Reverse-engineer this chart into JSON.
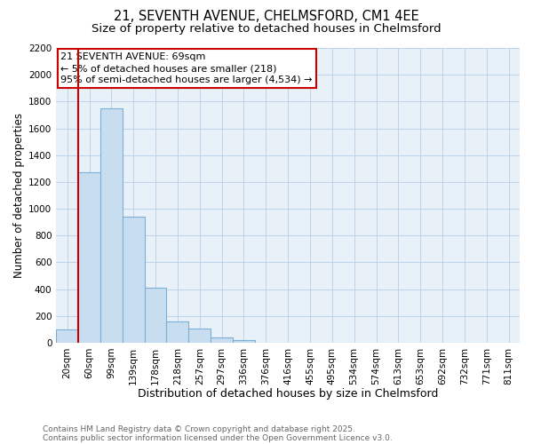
{
  "title1": "21, SEVENTH AVENUE, CHELMSFORD, CM1 4EE",
  "title2": "Size of property relative to detached houses in Chelmsford",
  "xlabel": "Distribution of detached houses by size in Chelmsford",
  "ylabel": "Number of detached properties",
  "bins": [
    "20sqm",
    "60sqm",
    "99sqm",
    "139sqm",
    "178sqm",
    "218sqm",
    "257sqm",
    "297sqm",
    "336sqm",
    "376sqm",
    "416sqm",
    "455sqm",
    "495sqm",
    "534sqm",
    "574sqm",
    "613sqm",
    "653sqm",
    "692sqm",
    "732sqm",
    "771sqm",
    "811sqm"
  ],
  "values": [
    100,
    1270,
    1750,
    940,
    410,
    155,
    108,
    40,
    20,
    0,
    0,
    0,
    0,
    0,
    0,
    0,
    0,
    0,
    0,
    0,
    0
  ],
  "bar_color": "#c9ddf0",
  "bar_edge_color": "#7bafd4",
  "grid_color": "#b8cfe8",
  "bg_color": "#e8f0f8",
  "annotation_line1": "21 SEVENTH AVENUE: 69sqm",
  "annotation_line2": "← 5% of detached houses are smaller (218)",
  "annotation_line3": "95% of semi-detached houses are larger (4,534) →",
  "vline_color": "#cc0000",
  "box_color": "#cc0000",
  "ylim_max": 2200,
  "yticks": [
    0,
    200,
    400,
    600,
    800,
    1000,
    1200,
    1400,
    1600,
    1800,
    2000,
    2200
  ],
  "footer1": "Contains HM Land Registry data © Crown copyright and database right 2025.",
  "footer2": "Contains public sector information licensed under the Open Government Licence v3.0.",
  "title1_fontsize": 10.5,
  "title2_fontsize": 9.5,
  "xlabel_fontsize": 9,
  "ylabel_fontsize": 8.5,
  "tick_fontsize": 7.5,
  "annotation_fontsize": 8,
  "footer_fontsize": 6.5
}
